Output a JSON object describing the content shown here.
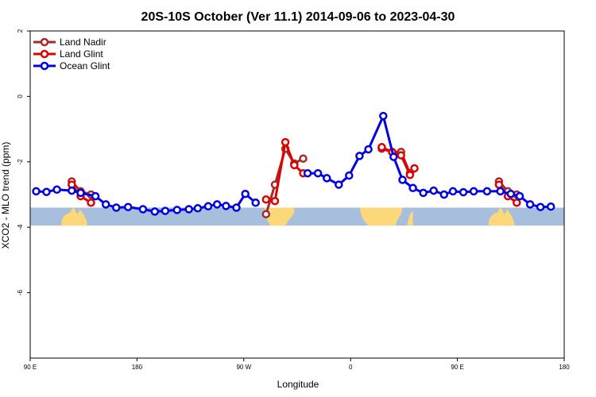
{
  "chart_data": {
    "type": "line",
    "title": "20S-10S October (Ver 11.1)   2014-09-06 to 2023-04-30",
    "xlabel": "Longitude",
    "ylabel": "XCO2 - MLO trend (ppm)",
    "xlim": [
      90,
      450
    ],
    "ylim": [
      -8,
      2
    ],
    "x_ticks": [
      {
        "value": 90,
        "label": "90 E"
      },
      {
        "value": 162,
        "label": "180"
      },
      {
        "value": 234,
        "label": "90 W"
      },
      {
        "value": 306,
        "label": "0"
      },
      {
        "value": 378,
        "label": "90 E"
      },
      {
        "value": 450,
        "label": "180"
      }
    ],
    "y_ticks": [
      {
        "value": 2,
        "label": "2"
      },
      {
        "value": 0,
        "label": "0"
      },
      {
        "value": -2,
        "label": "-2"
      },
      {
        "value": -4,
        "label": "-4"
      },
      {
        "value": -6,
        "label": "-6"
      }
    ],
    "legend_position": "top-left",
    "map_band": {
      "ymin": -3.95,
      "ymax": -3.4,
      "ocean_color": "#a8bedd",
      "land_color": "#fcd87a"
    },
    "series": [
      {
        "name": "Land Nadir",
        "color": "#a52a2a",
        "segments": [
          [
            [
              118,
              -2.6
            ],
            [
              124,
              -2.9
            ],
            [
              131,
              -3.0
            ]
          ],
          [
            [
              249,
              -3.6
            ],
            [
              255,
              -2.7
            ],
            [
              262,
              -1.6
            ],
            [
              268,
              -2.05
            ],
            [
              274,
              -1.9
            ]
          ],
          [
            [
              327,
              -1.6
            ],
            [
              334,
              -1.7
            ],
            [
              340,
              -1.7
            ],
            [
              346,
              -2.35
            ]
          ],
          [
            [
              406,
              -2.6
            ],
            [
              412,
              -2.9
            ],
            [
              418,
              -3.0
            ]
          ]
        ]
      },
      {
        "name": "Land Glint",
        "color": "#e00000",
        "segments": [
          [
            [
              118,
              -2.7
            ],
            [
              124,
              -3.05
            ],
            [
              131,
              -3.25
            ]
          ],
          [
            [
              249,
              -3.15
            ],
            [
              255,
              -3.2
            ],
            [
              262,
              -1.4
            ],
            [
              268,
              -2.1
            ],
            [
              274,
              -2.35
            ]
          ],
          [
            [
              327,
              -1.55
            ],
            [
              334,
              -1.7
            ],
            [
              340,
              -1.8
            ],
            [
              346,
              -2.4
            ],
            [
              349,
              -2.2
            ]
          ],
          [
            [
              406,
              -2.7
            ],
            [
              412,
              -3.05
            ],
            [
              418,
              -3.25
            ]
          ]
        ]
      },
      {
        "name": "Ocean Glint",
        "color": "#0000e0",
        "segments": [
          [
            [
              94,
              -2.9
            ],
            [
              101,
              -2.92
            ],
            [
              108,
              -2.85
            ],
            [
              118,
              -2.88
            ],
            [
              124,
              -2.95
            ],
            [
              134,
              -3.05
            ],
            [
              141,
              -3.3
            ],
            [
              148,
              -3.4
            ],
            [
              156,
              -3.38
            ],
            [
              166,
              -3.45
            ],
            [
              174,
              -3.52
            ],
            [
              181,
              -3.5
            ],
            [
              189,
              -3.47
            ],
            [
              197,
              -3.45
            ],
            [
              203,
              -3.42
            ],
            [
              210,
              -3.36
            ],
            [
              216,
              -3.3
            ],
            [
              222,
              -3.35
            ],
            [
              229,
              -3.4
            ],
            [
              235,
              -2.98
            ],
            [
              242,
              -3.25
            ]
          ],
          [
            [
              277,
              -2.35
            ],
            [
              284,
              -2.35
            ],
            [
              290,
              -2.5
            ],
            [
              298,
              -2.7
            ],
            [
              305,
              -2.42
            ],
            [
              312,
              -1.82
            ],
            [
              318,
              -1.62
            ],
            [
              328,
              -0.6
            ],
            [
              335,
              -1.85
            ],
            [
              341,
              -2.55
            ],
            [
              348,
              -2.8
            ],
            [
              355,
              -2.95
            ],
            [
              362,
              -2.88
            ],
            [
              369,
              -3.0
            ],
            [
              375,
              -2.9
            ],
            [
              382,
              -2.93
            ],
            [
              389,
              -2.9
            ],
            [
              398,
              -2.9
            ],
            [
              407,
              -2.9
            ],
            [
              414,
              -2.98
            ],
            [
              420,
              -3.05
            ],
            [
              427,
              -3.3
            ],
            [
              434,
              -3.38
            ],
            [
              441,
              -3.37
            ]
          ]
        ]
      }
    ]
  }
}
